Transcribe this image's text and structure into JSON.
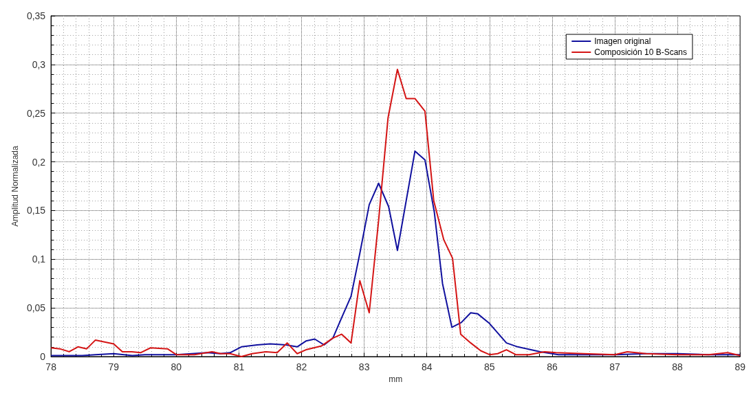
{
  "chart_data": {
    "type": "line",
    "xlabel": "mm",
    "ylabel": "Amplitud Normalizada",
    "xlim": [
      78,
      89
    ],
    "xticks": [
      78,
      79,
      80,
      81,
      82,
      83,
      84,
      85,
      86,
      87,
      88,
      89
    ],
    "ylim": [
      0,
      0.35
    ],
    "yticks": [
      {
        "value": 0,
        "label": "0"
      },
      {
        "value": 0.05,
        "label": "0,05"
      },
      {
        "value": 0.1,
        "label": "0,1"
      },
      {
        "value": 0.15,
        "label": "0,15"
      },
      {
        "value": 0.2,
        "label": "0,2"
      },
      {
        "value": 0.25,
        "label": "0,25"
      },
      {
        "value": 0.3,
        "label": "0,3"
      },
      {
        "value": 0.35,
        "label": "0,35"
      }
    ],
    "grid": true,
    "legend": "top right",
    "marker": "none",
    "line_style": "solid",
    "series": [
      {
        "name": "Imagen original",
        "color": "#10109e",
        "x": [
          78,
          78.5,
          78.71,
          79,
          79.3,
          79.5,
          80,
          80.5,
          80.7,
          80.86,
          81.04,
          81.29,
          81.5,
          81.75,
          81.93,
          82.07,
          82.21,
          82.36,
          82.5,
          82.64,
          82.79,
          82.93,
          83.08,
          83.23,
          83.39,
          83.53,
          83.67,
          83.81,
          83.97,
          84.12,
          84.25,
          84.4,
          84.55,
          84.7,
          84.81,
          85,
          85.27,
          85.45,
          85.81,
          86.1,
          86.5,
          87,
          87.5,
          88,
          88.5,
          89
        ],
        "values": [
          0.001,
          0.001,
          0.002,
          0.003,
          0.001,
          0.002,
          0.002,
          0.004,
          0.003,
          0.004,
          0.01,
          0.012,
          0.013,
          0.012,
          0.01,
          0.016,
          0.018,
          0.012,
          0.019,
          0.04,
          0.062,
          0.106,
          0.156,
          0.178,
          0.154,
          0.109,
          0.16,
          0.211,
          0.202,
          0.148,
          0.075,
          0.03,
          0.035,
          0.045,
          0.044,
          0.034,
          0.014,
          0.01,
          0.005,
          0.002,
          0.002,
          0.002,
          0.003,
          0.003,
          0.002,
          0.002
        ]
      },
      {
        "name": "Composición 10 B-Scans",
        "color": "#d41414",
        "x": [
          78,
          78.14,
          78.29,
          78.43,
          78.57,
          78.71,
          79,
          79.14,
          79.29,
          79.43,
          79.59,
          79.86,
          80,
          80.29,
          80.57,
          80.71,
          80.86,
          81.04,
          81.21,
          81.43,
          81.61,
          81.77,
          81.93,
          82.07,
          82.32,
          82.5,
          82.64,
          82.79,
          82.93,
          83.08,
          83.23,
          83.38,
          83.53,
          83.67,
          83.81,
          83.97,
          84.11,
          84.27,
          84.41,
          84.54,
          84.7,
          84.86,
          85,
          85.13,
          85.27,
          85.42,
          85.63,
          85.88,
          86.06,
          86.5,
          87,
          87.2,
          87.5,
          88,
          88.5,
          88.8,
          89
        ],
        "values": [
          0.009,
          0.008,
          0.005,
          0.01,
          0.008,
          0.017,
          0.013,
          0.005,
          0.005,
          0.004,
          0.009,
          0.008,
          0.002,
          0.002,
          0.005,
          0.003,
          0.003,
          0,
          0.003,
          0.005,
          0.004,
          0.014,
          0.003,
          0.007,
          0.011,
          0.019,
          0.023,
          0.014,
          0.078,
          0.045,
          0.14,
          0.245,
          0.295,
          0.265,
          0.265,
          0.252,
          0.16,
          0.12,
          0.101,
          0.023,
          0.014,
          0.006,
          0.002,
          0.003,
          0.007,
          0.002,
          0.002,
          0.005,
          0.004,
          0.003,
          0.002,
          0.005,
          0.003,
          0.002,
          0.002,
          0.004,
          0.001
        ]
      }
    ]
  }
}
